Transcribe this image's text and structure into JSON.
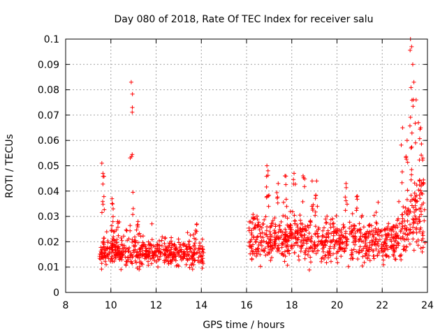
{
  "chart_data": {
    "type": "scatter",
    "title": "Day 080 of 2018, Rate Of TEC Index for receiver salu",
    "xlabel": "GPS time / hours",
    "ylabel": "ROTI / TECUs",
    "xlim": [
      8,
      24
    ],
    "ylim": [
      0,
      0.1
    ],
    "xticks": [
      8,
      10,
      12,
      14,
      16,
      18,
      20,
      22,
      24
    ],
    "yticks": [
      0,
      0.01,
      0.02,
      0.03,
      0.04,
      0.05,
      0.06,
      0.07,
      0.08,
      0.09,
      0.1
    ],
    "ytick_labels": [
      "0",
      "0.01",
      "0.02",
      "0.03",
      "0.04",
      "0.05",
      "0.06",
      "0.07",
      "0.08",
      "0.09",
      "0.1"
    ],
    "xtick_labels": [
      "8",
      "10",
      "12",
      "14",
      "16",
      "18",
      "20",
      "22",
      "24"
    ],
    "grid": true,
    "marker": "+",
    "color": "#ff0000",
    "segments": [
      {
        "x_start": 9.5,
        "x_end": 14.1,
        "y_low": 0.008,
        "y_high": 0.022,
        "peaks": [
          [
            9.6,
            0.051
          ],
          [
            9.65,
            0.047
          ],
          [
            10.05,
            0.037
          ],
          [
            10.1,
            0.033
          ],
          [
            10.3,
            0.028
          ],
          [
            10.9,
            0.083
          ],
          [
            10.95,
            0.073
          ],
          [
            11.2,
            0.028
          ],
          [
            13.8,
            0.027
          ]
        ]
      },
      {
        "x_start": 16.1,
        "x_end": 23.9,
        "y_low": 0.008,
        "y_high": 0.03,
        "peaks": [
          [
            16.3,
            0.029
          ],
          [
            16.9,
            0.05
          ],
          [
            16.95,
            0.048
          ],
          [
            17.4,
            0.043
          ],
          [
            17.7,
            0.046
          ],
          [
            18.1,
            0.047
          ],
          [
            18.5,
            0.046
          ],
          [
            18.9,
            0.044
          ],
          [
            19.1,
            0.044
          ],
          [
            20.4,
            0.043
          ],
          [
            20.9,
            0.038
          ],
          [
            22.9,
            0.065
          ],
          [
            23.1,
            0.06
          ],
          [
            23.25,
            0.1
          ],
          [
            23.3,
            0.097
          ],
          [
            23.35,
            0.09
          ],
          [
            23.4,
            0.083
          ],
          [
            23.5,
            0.076
          ],
          [
            23.6,
            0.067
          ],
          [
            23.7,
            0.065
          ]
        ]
      }
    ]
  }
}
